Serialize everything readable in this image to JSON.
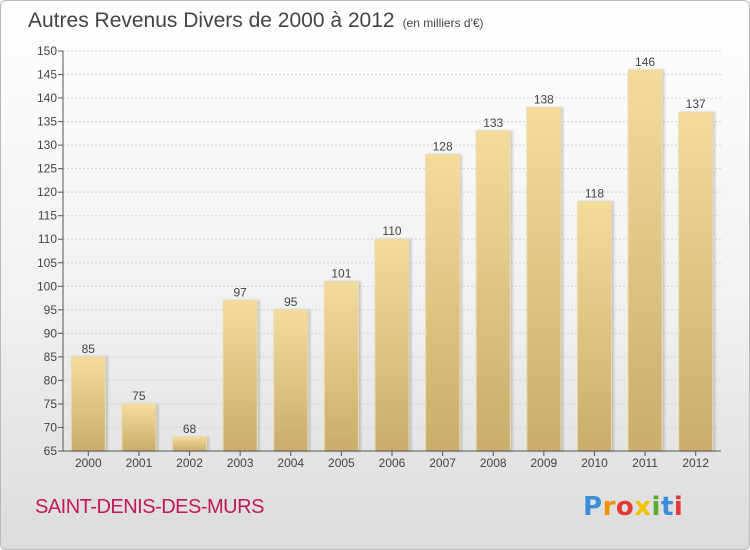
{
  "title": "Autres Revenus Divers de 2000 à 2012",
  "subtitle": "(en milliers d'€)",
  "location": "SAINT-DENIS-DES-MURS",
  "logo": {
    "letters": [
      "P",
      "r",
      "o",
      "x",
      "i",
      "t",
      "i"
    ],
    "colors": [
      "#3a8fd8",
      "#f29100",
      "#e53935",
      "#f2c300",
      "#5aab2e",
      "#3a8fd8",
      "#e53935"
    ]
  },
  "colors": {
    "bar_top": "#f5dc9b",
    "bar_bottom": "#c9ad6a",
    "title": "#444444",
    "location": "#c2185b"
  },
  "chart_data": {
    "type": "bar",
    "categories": [
      "2000",
      "2001",
      "2002",
      "2003",
      "2004",
      "2005",
      "2006",
      "2007",
      "2008",
      "2009",
      "2010",
      "2011",
      "2012"
    ],
    "values": [
      85,
      75,
      68,
      97,
      95,
      101,
      110,
      128,
      133,
      138,
      118,
      146,
      137
    ],
    "ylim": [
      65,
      150
    ],
    "yticks": [
      65,
      70,
      75,
      80,
      85,
      90,
      95,
      100,
      105,
      110,
      115,
      120,
      125,
      130,
      135,
      140,
      145,
      150
    ],
    "grid": true,
    "data_labels": true
  }
}
